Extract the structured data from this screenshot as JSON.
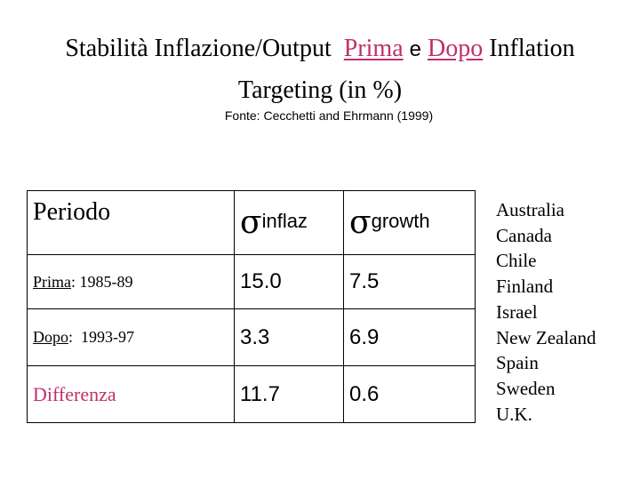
{
  "title": {
    "part1": "Stabilità Inflazione/Output",
    "prima": "Prima",
    "and": "e",
    "dopo": "Dopo",
    "part2": "Inflation",
    "line2": "Targeting (in %)"
  },
  "source": "Fonte: Cecchetti and Ehrmann (1999)",
  "table": {
    "header": {
      "period": "Periodo",
      "sigma1": "σ",
      "sub1": "inflaz",
      "sigma2": "σ",
      "sub2": "growth"
    },
    "rows": [
      {
        "prefix": "Prima",
        "label": ": 1985-89",
        "inflaz": "15.0",
        "growth": "7.5"
      },
      {
        "prefix": "Dopo",
        "label": ":  1993-97",
        "inflaz": "3.3",
        "growth": "6.9"
      },
      {
        "prefix": "",
        "label": "Differenza",
        "inflaz": "11.7",
        "growth": "0.6"
      }
    ]
  },
  "countries": [
    "Australia",
    "Canada",
    "Chile",
    "Finland",
    "Israel",
    "New Zealand",
    "Spain",
    "Sweden",
    "U.K."
  ],
  "colors": {
    "accent": "#c0306a"
  }
}
